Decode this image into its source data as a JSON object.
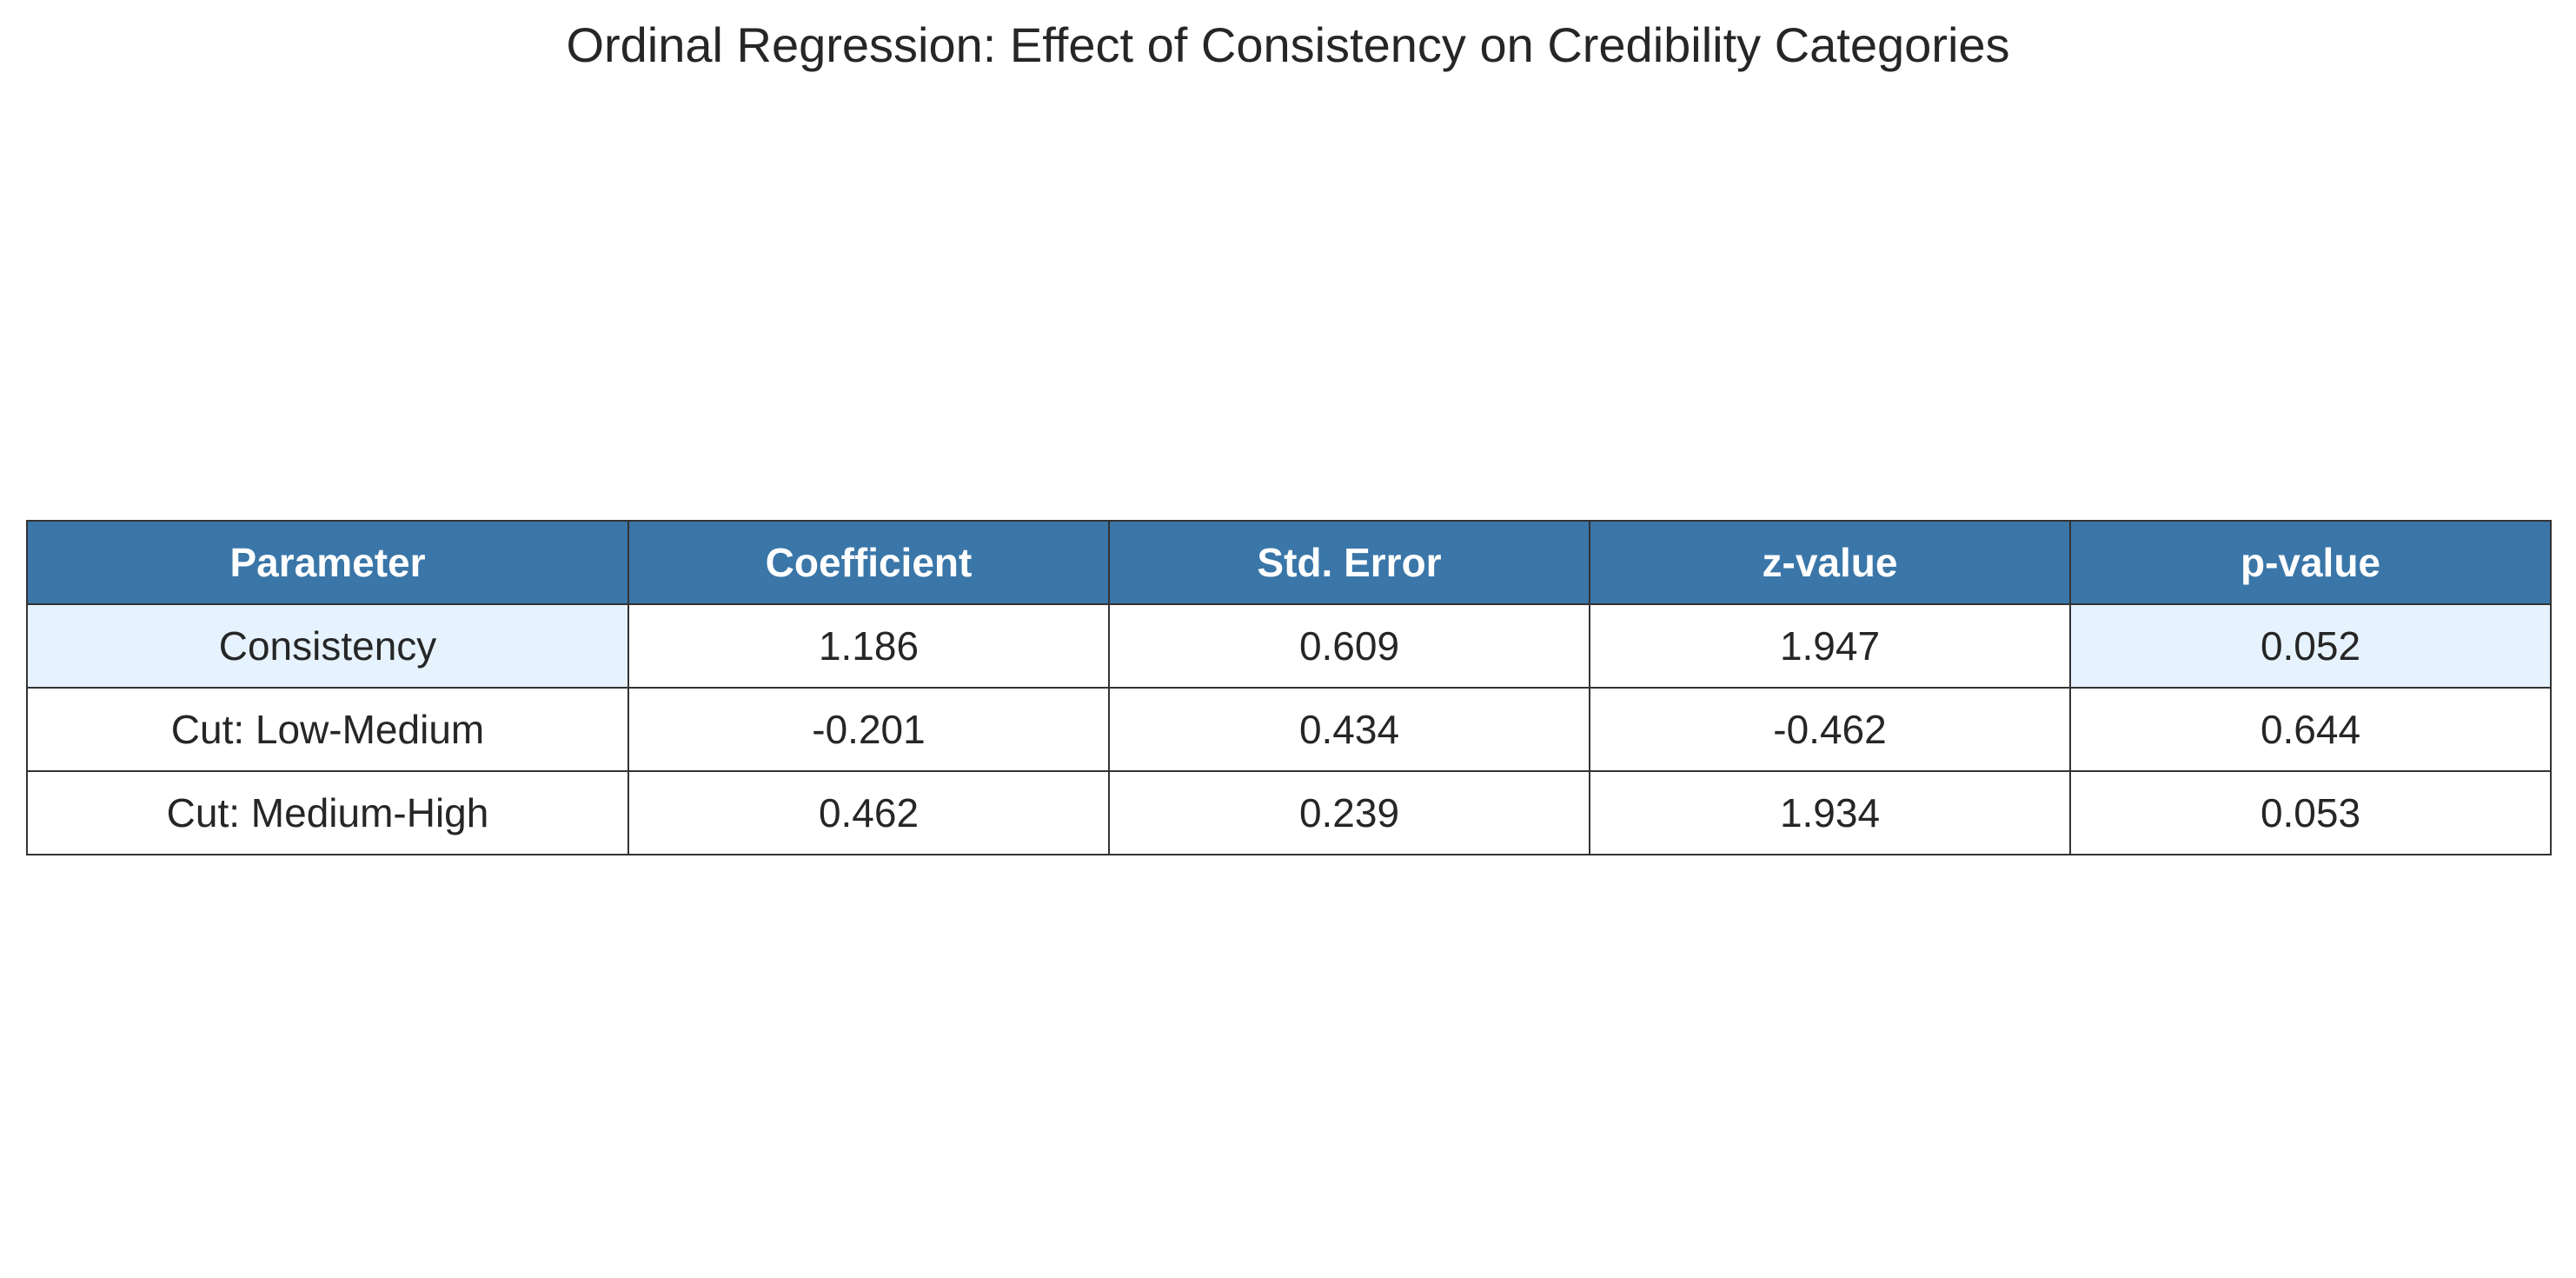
{
  "chart_data": {
    "type": "table",
    "title": "Ordinal Regression: Effect of Consistency on Credibility Categories",
    "columns": [
      "Parameter",
      "Coefficient",
      "Std. Error",
      "z-value",
      "p-value"
    ],
    "rows": [
      [
        "Consistency",
        "1.186",
        "0.609",
        "1.947",
        "0.052"
      ],
      [
        "Cut: Low-Medium",
        "-0.201",
        "0.434",
        "-0.462",
        "0.644"
      ],
      [
        "Cut: Medium-High",
        "0.462",
        "0.239",
        "1.934",
        "0.053"
      ]
    ],
    "highlighted_cells": [
      [
        0,
        0
      ],
      [
        0,
        4
      ]
    ],
    "colors": {
      "header_background": "#3a76a8",
      "header_text": "#ffffff",
      "highlight_background": "#e6f2fe",
      "cell_background": "#ffffff",
      "border": "#333333"
    }
  }
}
